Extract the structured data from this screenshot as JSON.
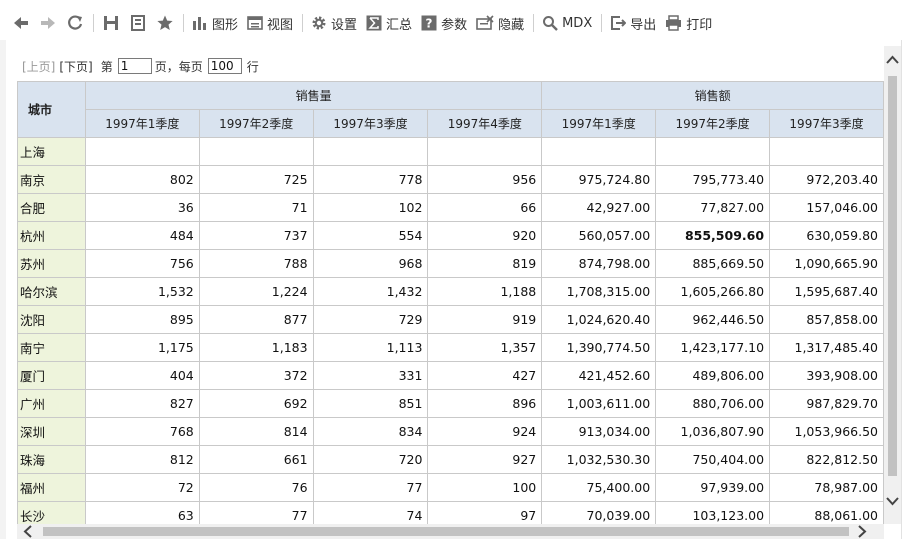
{
  "toolbar": {
    "graph_label": "图形",
    "view_label": "视图",
    "settings_label": "设置",
    "summary_label": "汇总",
    "params_label": "参数",
    "hide_label": "隐藏",
    "mdx_label": "MDX",
    "export_label": "导出",
    "print_label": "打印"
  },
  "pager": {
    "prev": "[上页]",
    "next": "[下页]",
    "page_prefix": "第",
    "page_value": "1",
    "page_mid": "页，每页",
    "per_page_value": "100",
    "rows_suffix": "行"
  },
  "table": {
    "corner": "城市",
    "group_sales_qty": "销售量",
    "group_sales_amt": "销售额",
    "qty_headers": [
      "1997年1季度",
      "1997年2季度",
      "1997年3季度",
      "1997年4季度"
    ],
    "amt_headers": [
      "1997年1季度",
      "1997年2季度",
      "1997年3季度"
    ],
    "rows": [
      {
        "city": "上海",
        "q": [
          "",
          "",
          "",
          ""
        ],
        "a": [
          "",
          "",
          ""
        ]
      },
      {
        "city": "南京",
        "q": [
          "802",
          "725",
          "778",
          "956"
        ],
        "a": [
          "975,724.80",
          "795,773.40",
          "972,203.40"
        ]
      },
      {
        "city": "合肥",
        "q": [
          "36",
          "71",
          "102",
          "66"
        ],
        "a": [
          "42,927.00",
          "77,827.00",
          "157,046.00"
        ]
      },
      {
        "city": "杭州",
        "q": [
          "484",
          "737",
          "554",
          "920"
        ],
        "a": [
          "560,057.00",
          "855,509.60",
          "630,059.80"
        ]
      },
      {
        "city": "苏州",
        "q": [
          "756",
          "788",
          "968",
          "819"
        ],
        "a": [
          "874,798.00",
          "885,669.50",
          "1,090,665.90"
        ]
      },
      {
        "city": "哈尔滨",
        "q": [
          "1,532",
          "1,224",
          "1,432",
          "1,188"
        ],
        "a": [
          "1,708,315.00",
          "1,605,266.80",
          "1,595,687.40"
        ]
      },
      {
        "city": "沈阳",
        "q": [
          "895",
          "877",
          "729",
          "919"
        ],
        "a": [
          "1,024,620.40",
          "962,446.50",
          "857,858.00"
        ]
      },
      {
        "city": "南宁",
        "q": [
          "1,175",
          "1,183",
          "1,113",
          "1,357"
        ],
        "a": [
          "1,390,774.50",
          "1,423,177.10",
          "1,317,485.40"
        ]
      },
      {
        "city": "厦门",
        "q": [
          "404",
          "372",
          "331",
          "427"
        ],
        "a": [
          "421,452.60",
          "489,806.00",
          "393,908.00"
        ]
      },
      {
        "city": "广州",
        "q": [
          "827",
          "692",
          "851",
          "896"
        ],
        "a": [
          "1,003,611.00",
          "880,706.00",
          "987,829.70"
        ]
      },
      {
        "city": "深圳",
        "q": [
          "768",
          "814",
          "834",
          "924"
        ],
        "a": [
          "913,034.00",
          "1,036,807.90",
          "1,053,966.50"
        ]
      },
      {
        "city": "珠海",
        "q": [
          "812",
          "661",
          "720",
          "927"
        ],
        "a": [
          "1,032,530.30",
          "750,404.00",
          "822,812.50"
        ]
      },
      {
        "city": "福州",
        "q": [
          "72",
          "76",
          "77",
          "100"
        ],
        "a": [
          "75,400.00",
          "97,939.00",
          "78,987.00"
        ]
      },
      {
        "city": "长沙",
        "q": [
          "63",
          "77",
          "74",
          "97"
        ],
        "a": [
          "70,039.00",
          "103,123.00",
          "88,061.00"
        ]
      }
    ]
  }
}
